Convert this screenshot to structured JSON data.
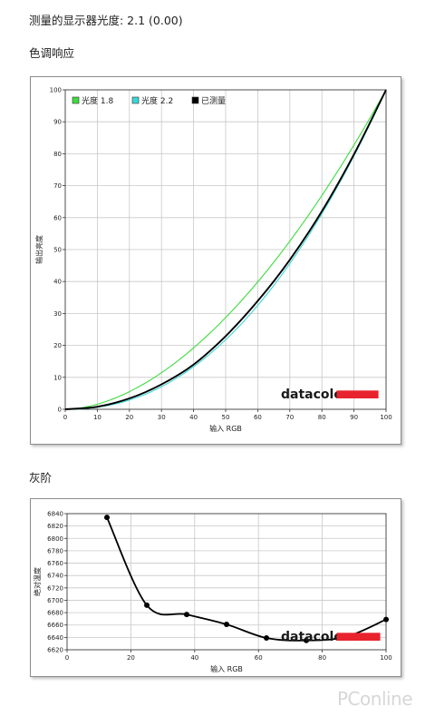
{
  "page": {
    "gamma_heading": "测量的显示器光度:  2.1 (0.00)",
    "tone_heading": "色调响应",
    "gray_heading": "灰阶",
    "watermark": "PConline"
  },
  "brand": {
    "name": "datacolor",
    "bar_color": "#e8232e"
  },
  "chart_data": [
    {
      "type": "line",
      "title": "",
      "xlabel": "输入 RGB",
      "ylabel": "输出亮度",
      "xlim": [
        0,
        100
      ],
      "ylim": [
        0,
        100
      ],
      "x_ticks": [
        0,
        10,
        20,
        30,
        40,
        50,
        60,
        70,
        80,
        90,
        100
      ],
      "y_ticks": [
        0,
        10,
        20,
        30,
        40,
        50,
        60,
        70,
        80,
        90,
        100
      ],
      "grid": true,
      "legend_position": "top-left",
      "series": [
        {
          "name": "光度 1.8",
          "color": "#3fdc3f",
          "gamma": 1.8,
          "x": [
            0,
            10,
            20,
            30,
            40,
            50,
            60,
            70,
            80,
            90,
            100
          ],
          "y": [
            0,
            1.6,
            5.5,
            11.5,
            19.2,
            28.7,
            39.8,
            52.6,
            66.9,
            82.7,
            100
          ]
        },
        {
          "name": "光度 2.2",
          "color": "#3cd6d6",
          "gamma": 2.2,
          "x": [
            0,
            10,
            20,
            30,
            40,
            50,
            60,
            70,
            80,
            90,
            100
          ],
          "y": [
            0,
            0.6,
            2.9,
            7.1,
            13.3,
            21.8,
            32.5,
            45.6,
            61.2,
            79.3,
            100
          ]
        },
        {
          "name": "已测量",
          "color": "#000000",
          "x": [
            0,
            10,
            20,
            30,
            40,
            50,
            60,
            70,
            80,
            90,
            100
          ],
          "y": [
            0,
            0.8,
            3.4,
            7.8,
            14.0,
            22.9,
            33.9,
            46.8,
            62.0,
            79.8,
            100
          ]
        }
      ]
    },
    {
      "type": "line",
      "title": "",
      "xlabel": "输入 RGB",
      "ylabel": "绝对温度",
      "xlim": [
        0,
        100
      ],
      "ylim": [
        6620,
        6840
      ],
      "x_ticks": [
        0,
        20,
        40,
        60,
        80,
        100
      ],
      "y_ticks": [
        6620,
        6640,
        6660,
        6680,
        6700,
        6720,
        6740,
        6760,
        6780,
        6800,
        6820,
        6840
      ],
      "grid": true,
      "series": [
        {
          "name": "",
          "color": "#000000",
          "x": [
            12.5,
            25,
            37.5,
            50,
            62.5,
            75,
            87.5,
            100
          ],
          "y": [
            6834,
            6692,
            6677,
            6661,
            6639,
            6635,
            6641,
            6669
          ]
        }
      ]
    }
  ]
}
